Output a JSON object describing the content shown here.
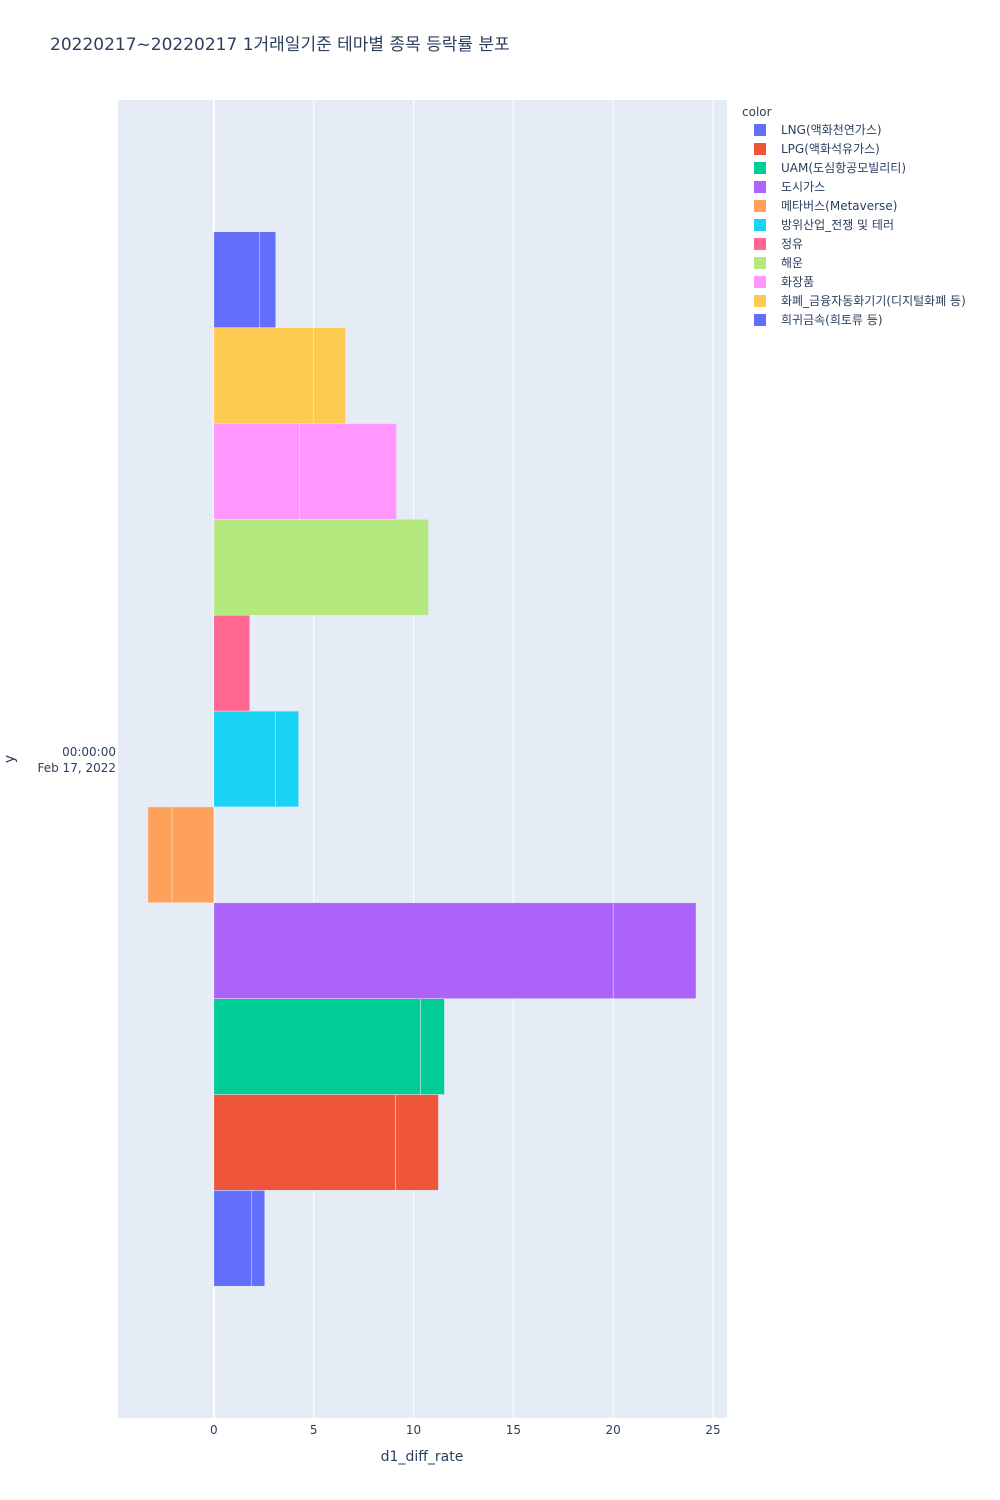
{
  "chart_data": {
    "type": "bar",
    "orientation": "horizontal",
    "barmode": "relative",
    "title": "20220217~20220217 1거래일기준 테마별 종목 등락률 분포",
    "xlabel": "d1_diff_rate",
    "ylabel": "y",
    "xlim": [
      -4.8,
      25.7
    ],
    "x_ticks": [
      0,
      5,
      10,
      15,
      20,
      25
    ],
    "y_tick_label": [
      "00:00:00",
      "Feb 17, 2022"
    ],
    "grid": true,
    "legend_title": "color",
    "legend_position": "top-right",
    "series": [
      {
        "name": "LNG(액화천연가스)",
        "color": "#636efa",
        "segments": [
          1.9,
          0.65
        ]
      },
      {
        "name": "LPG(액화석유가스)",
        "color": "#EF553B",
        "segments": [
          9.1,
          2.15
        ]
      },
      {
        "name": "UAM(도심항공모빌리티)",
        "color": "#00cc96",
        "segments": [
          10.35,
          1.2
        ]
      },
      {
        "name": "도시가스",
        "color": "#ab63fa",
        "segments": [
          20.0,
          4.15
        ]
      },
      {
        "name": "메타버스(Metaverse)",
        "color": "#FFA15A",
        "segments": [
          -2.1,
          -1.2
        ]
      },
      {
        "name": "방위산업_전쟁 및 테러",
        "color": "#19d3f3",
        "segments": [
          3.1,
          1.15
        ]
      },
      {
        "name": "정유",
        "color": "#FF6692",
        "segments": [
          1.8
        ]
      },
      {
        "name": "해운",
        "color": "#B6E880",
        "segments": [
          10.75
        ]
      },
      {
        "name": "화장품",
        "color": "#FF97FF",
        "segments": [
          4.3,
          4.85
        ]
      },
      {
        "name": "화폐_금융자동화기기(디지털화폐 등)",
        "color": "#FECB52",
        "segments": [
          5.0,
          1.6
        ]
      },
      {
        "name": "희귀금속(희토류 등)",
        "color": "#636efa",
        "segments": [
          2.3,
          0.8
        ]
      }
    ]
  }
}
